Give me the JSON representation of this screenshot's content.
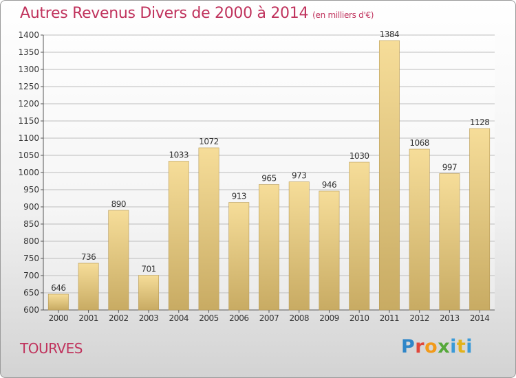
{
  "title": "Autres Revenus Divers de 2000 à 2014",
  "unit": "(en milliers d'€)",
  "city": "TOURVES",
  "logo": {
    "text": "Proxiti",
    "letters": [
      "P",
      "r",
      "o",
      "x",
      "i",
      "t",
      "i"
    ]
  },
  "colors": {
    "title": "#c0335d",
    "bar_top": "#f6dd99",
    "bar_bottom": "#c8ab63",
    "bar_edge": "#b69a57"
  },
  "chart_data": {
    "type": "bar",
    "categories": [
      "2000",
      "2001",
      "2002",
      "2003",
      "2004",
      "2005",
      "2006",
      "2007",
      "2008",
      "2009",
      "2010",
      "2011",
      "2012",
      "2013",
      "2014"
    ],
    "values": [
      646,
      736,
      890,
      701,
      1033,
      1072,
      913,
      965,
      973,
      946,
      1030,
      1384,
      1068,
      997,
      1128
    ],
    "ylim": [
      600,
      1400
    ],
    "yticks": [
      600,
      650,
      700,
      750,
      800,
      850,
      900,
      950,
      1000,
      1050,
      1100,
      1150,
      1200,
      1250,
      1300,
      1350,
      1400
    ],
    "grid": true,
    "data_labels": true,
    "xlabel": "",
    "ylabel": ""
  }
}
